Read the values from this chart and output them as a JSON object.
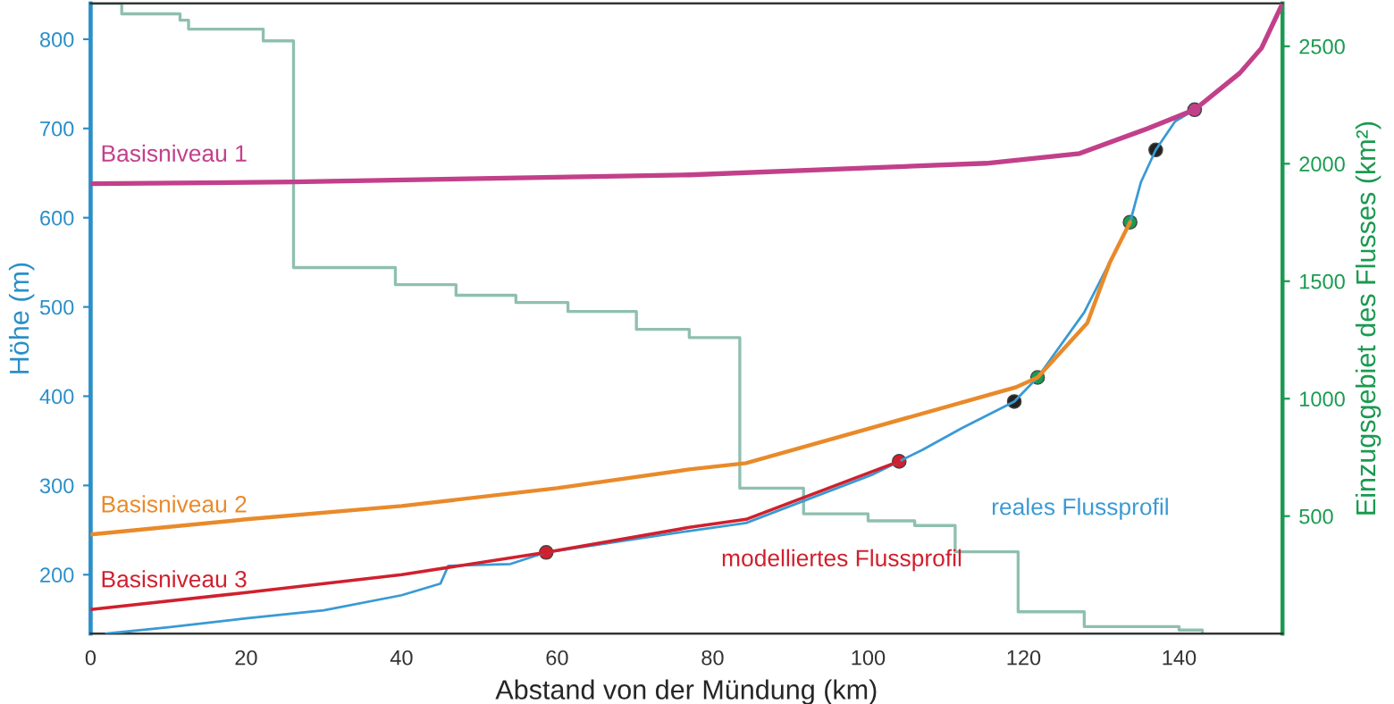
{
  "chart_data": {
    "type": "line",
    "xlabel": "Abstand von der Mündung (km)",
    "ylabel": "Höhe (m)",
    "y2label": "Einzugsgebiet des Flusses (km²)",
    "xlim": [
      0,
      153.3
    ],
    "xticks": [
      0,
      20,
      40,
      60,
      80,
      100,
      120,
      140
    ],
    "ylim": [
      134,
      840
    ],
    "yticks": [
      200,
      300,
      400,
      500,
      600,
      700,
      800
    ],
    "y2lim": [
      0,
      2682
    ],
    "y2ticks": [
      500,
      1000,
      1500,
      2000,
      2500
    ],
    "grid": false,
    "legend": false,
    "series": [
      {
        "type": "step",
        "axis": "y2",
        "color": "#8fbfb0",
        "x": [
          0,
          4,
          11.5,
          12.6,
          22.2,
          26.1,
          39.2,
          47,
          54.7,
          61.4,
          70.2,
          77,
          83.5,
          91.7,
          100,
          106,
          111.2,
          119.3,
          127.8,
          140,
          143
        ],
        "values": [
          2682,
          2638,
          2611,
          2573,
          2523,
          1558,
          1485,
          1440,
          1409,
          1371,
          1295,
          1260,
          619,
          510,
          480,
          460,
          348,
          93,
          30,
          15,
          0
        ]
      },
      {
        "name": "Basisniveau 1",
        "color": "#c2408a",
        "x": [
          0,
          26,
          77,
          115.2,
          127.2,
          136,
          142,
          147.8,
          150.6,
          153.3
        ],
        "values": [
          638,
          640,
          648,
          661,
          672,
          700,
          721,
          762,
          790,
          840
        ]
      },
      {
        "name": "Basisniveau 2",
        "color": "#e98a2a",
        "x": [
          0,
          20,
          40,
          60,
          77,
          84.3,
          119,
          121.8,
          128.2,
          131.1,
          133.7
        ],
        "values": [
          245,
          262,
          277,
          297,
          318,
          325,
          410,
          421,
          482,
          550,
          595
        ]
      },
      {
        "name": "Basisniveau 3",
        "color": "#d0202e",
        "x": [
          0,
          20,
          40,
          58.6,
          77,
          84.3,
          104
        ],
        "values": [
          161,
          180,
          200,
          225,
          253,
          262,
          327
        ]
      },
      {
        "name": "reales Flussprofil",
        "color": "#3a9ad4",
        "x": [
          2,
          10,
          20,
          30,
          40,
          45,
          46,
          54,
          58.6,
          77,
          84.3,
          100.5,
          104,
          107,
          112,
          118.8,
          121.8,
          127.8,
          133.7,
          135.1,
          137,
          139.5,
          142
        ],
        "values": [
          134,
          141,
          151,
          160,
          177,
          190,
          210,
          212,
          225,
          249,
          258,
          312,
          327,
          340,
          364,
          394,
          421,
          494,
          595,
          640,
          676,
          708,
          721
        ]
      },
      {
        "type": "scatter",
        "color": "#222222",
        "x": [
          118.8,
          137
        ],
        "values": [
          394,
          676
        ]
      },
      {
        "type": "scatter",
        "color": "#1a9a50",
        "x": [
          121.8,
          133.7
        ],
        "values": [
          421,
          595
        ]
      },
      {
        "type": "scatter",
        "color": "#d0202e",
        "x": [
          58.6,
          104
        ],
        "values": [
          225,
          327
        ]
      },
      {
        "type": "scatter",
        "color": "#c2408a",
        "x": [
          142
        ],
        "values": [
          721
        ]
      }
    ],
    "annotations": [
      {
        "text": "modelliertes Flussprofil",
        "x": 84.3,
        "y": 262
      }
    ]
  }
}
